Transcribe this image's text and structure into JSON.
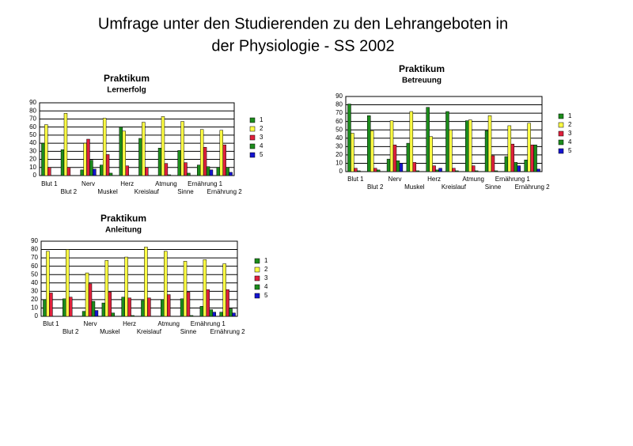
{
  "header": {
    "title_lines": [
      "Umfrage unter den Studierenden zu den Lehrangeboten in",
      "der Physiologie - SS 2002"
    ]
  },
  "chart_data": [
    {
      "type": "bar",
      "title": "Praktikum",
      "subtitle": "Lernerfolg",
      "categories": [
        "Blut 1",
        "Blut 2",
        "Nerv",
        "Muskel",
        "Herz",
        "Kreislauf",
        "Atmung",
        "Sinne",
        "Ernährung 1",
        "Ernährung 2"
      ],
      "series": [
        {
          "name": "1",
          "color": "#1c8c1c",
          "values": [
            40,
            32,
            7,
            13,
            60,
            46,
            34,
            31,
            13,
            10
          ]
        },
        {
          "name": "2",
          "color": "#ffff44",
          "values": [
            63,
            77,
            40,
            71,
            55,
            66,
            73,
            67,
            57,
            56
          ]
        },
        {
          "name": "3",
          "color": "#e0203c",
          "values": [
            10,
            10,
            45,
            26,
            12,
            10,
            15,
            16,
            35,
            38
          ]
        },
        {
          "name": "4",
          "color": "#1c8c1c",
          "values": [
            0,
            0,
            19,
            3,
            0,
            0,
            1,
            3,
            11,
            10
          ]
        },
        {
          "name": "5",
          "color": "#1414d0",
          "values": [
            0,
            0,
            8,
            0,
            0,
            0,
            0,
            0,
            7,
            4
          ]
        }
      ],
      "ylim": [
        0,
        90
      ],
      "yticks": [
        0,
        10,
        20,
        30,
        40,
        50,
        60,
        70,
        80,
        90
      ],
      "grid": true,
      "legend": "right"
    },
    {
      "type": "bar",
      "title": "Praktikum",
      "subtitle": "Betreuung",
      "categories": [
        "Blut 1",
        "Blut 2",
        "Nerv",
        "Muskel",
        "Herz",
        "Kreislauf",
        "Atmung",
        "Sinne",
        "Ernährung 1",
        "Ernährung 2"
      ],
      "series": [
        {
          "name": "1",
          "color": "#1c8c1c",
          "values": [
            81,
            67,
            15,
            34,
            77,
            72,
            61,
            49,
            18,
            14
          ]
        },
        {
          "name": "2",
          "color": "#ffff44",
          "values": [
            46,
            49,
            61,
            72,
            42,
            50,
            62,
            67,
            55,
            58
          ]
        },
        {
          "name": "3",
          "color": "#e0203c",
          "values": [
            4,
            4,
            32,
            11,
            7,
            4,
            7,
            19,
            33,
            32
          ]
        },
        {
          "name": "4",
          "color": "#1c8c1c",
          "values": [
            1,
            2,
            13,
            1,
            2,
            1,
            1,
            1,
            11,
            32
          ]
        },
        {
          "name": "5",
          "color": "#1414d0",
          "values": [
            0,
            0,
            10,
            0,
            4,
            0,
            0,
            0,
            7,
            3
          ]
        }
      ],
      "ylim": [
        0,
        90
      ],
      "yticks": [
        0,
        10,
        20,
        30,
        40,
        50,
        60,
        70,
        80,
        90
      ],
      "grid": true,
      "legend": "right"
    },
    {
      "type": "bar",
      "title": "Praktikum",
      "subtitle": "Anleitung",
      "categories": [
        "Blut 1",
        "Blut 2",
        "Nerv",
        "Muskel",
        "Herz",
        "Kreislauf",
        "Atmung",
        "Sinne",
        "Ernährung 1",
        "Ernährung 2"
      ],
      "series": [
        {
          "name": "1",
          "color": "#1c8c1c",
          "values": [
            20,
            21,
            6,
            16,
            23,
            19,
            20,
            21,
            12,
            5
          ]
        },
        {
          "name": "2",
          "color": "#ffff44",
          "values": [
            78,
            80,
            52,
            67,
            71,
            83,
            78,
            66,
            68,
            63
          ]
        },
        {
          "name": "3",
          "color": "#e0203c",
          "values": [
            28,
            23,
            39,
            29,
            22,
            22,
            26,
            29,
            32,
            32
          ]
        },
        {
          "name": "4",
          "color": "#1c8c1c",
          "values": [
            0,
            0,
            18,
            4,
            1,
            0,
            0,
            1,
            8,
            9
          ]
        },
        {
          "name": "5",
          "color": "#1414d0",
          "values": [
            0,
            0,
            7,
            0,
            0,
            0,
            0,
            0,
            5,
            4
          ]
        }
      ],
      "ylim": [
        0,
        90
      ],
      "yticks": [
        0,
        10,
        20,
        30,
        40,
        50,
        60,
        70,
        80,
        90
      ],
      "grid": true,
      "legend": "right"
    }
  ]
}
